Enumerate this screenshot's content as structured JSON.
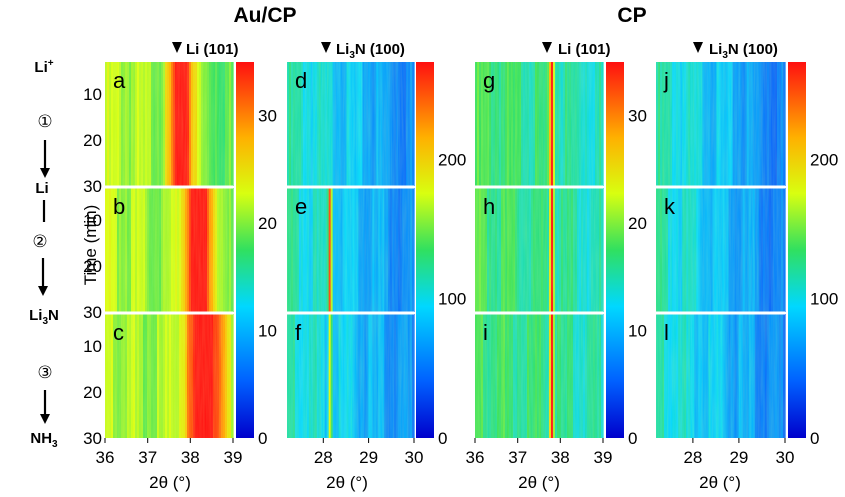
{
  "figure": {
    "group_titles": [
      "Au/CP",
      "CP"
    ],
    "peak_labels": [
      "Li (101)",
      "Li3N (100)",
      "Li (101)",
      "Li3N (100)"
    ],
    "y_axis_label": "Time (min)",
    "x_axis_labels": [
      "2θ (°)",
      "2θ (°)",
      "2θ (°)",
      "2θ (°)"
    ],
    "process_labels": [
      "Li+",
      "Li",
      "Li3N",
      "NH3"
    ],
    "steps": [
      "①",
      "②",
      "③"
    ],
    "panel_letters": [
      "a",
      "b",
      "c",
      "d",
      "e",
      "f",
      "g",
      "h",
      "i",
      "j",
      "k",
      "l"
    ]
  },
  "chart_data": [
    {
      "type": "heatmap",
      "group": "Au/CP",
      "peak": "Li (101)",
      "panels": [
        "a",
        "b",
        "c"
      ],
      "x_ticks": [
        36,
        37,
        38,
        39
      ],
      "xlim": [
        36,
        39
      ],
      "y_ticks": [
        10,
        20,
        30
      ],
      "ylim": [
        3,
        30
      ],
      "colorbar_ticks": [
        0,
        10,
        20,
        30
      ],
      "colorbar_range": [
        0,
        35
      ],
      "peak_position": 38.0,
      "peak_center_by_panel": [
        37.8,
        38.2,
        38.35
      ]
    },
    {
      "type": "heatmap",
      "group": "Au/CP",
      "peak": "Li3N (100)",
      "panels": [
        "d",
        "e",
        "f"
      ],
      "x_ticks": [
        28,
        29,
        30
      ],
      "xlim": [
        27.2,
        30
      ],
      "y_ticks": [
        10,
        20,
        30
      ],
      "ylim": [
        3,
        30
      ],
      "colorbar_ticks": [
        0,
        100,
        200
      ],
      "colorbar_range": [
        0,
        270
      ],
      "peak_position": 28.1,
      "peak_center_by_panel": [
        null,
        28.15,
        28.15
      ]
    },
    {
      "type": "heatmap",
      "group": "CP",
      "peak": "Li (101)",
      "panels": [
        "g",
        "h",
        "i"
      ],
      "x_ticks": [
        36,
        37,
        38,
        39
      ],
      "xlim": [
        36,
        39
      ],
      "y_ticks": [
        10,
        20,
        30
      ],
      "ylim": [
        3,
        30
      ],
      "colorbar_ticks": [
        0,
        10,
        20,
        30
      ],
      "colorbar_range": [
        0,
        35
      ],
      "peak_position": 37.8,
      "peak_center_by_panel": [
        37.8,
        37.8,
        37.8
      ]
    },
    {
      "type": "heatmap",
      "group": "CP",
      "peak": "Li3N (100)",
      "panels": [
        "j",
        "k",
        "l"
      ],
      "x_ticks": [
        28,
        29,
        30
      ],
      "xlim": [
        27.2,
        30
      ],
      "y_ticks": [
        10,
        20,
        30
      ],
      "ylim": [
        3,
        30
      ],
      "colorbar_ticks": [
        0,
        100,
        200
      ],
      "colorbar_range": [
        0,
        270
      ],
      "peak_position": 28.1,
      "peak_center_by_panel": [
        null,
        null,
        null
      ]
    }
  ]
}
